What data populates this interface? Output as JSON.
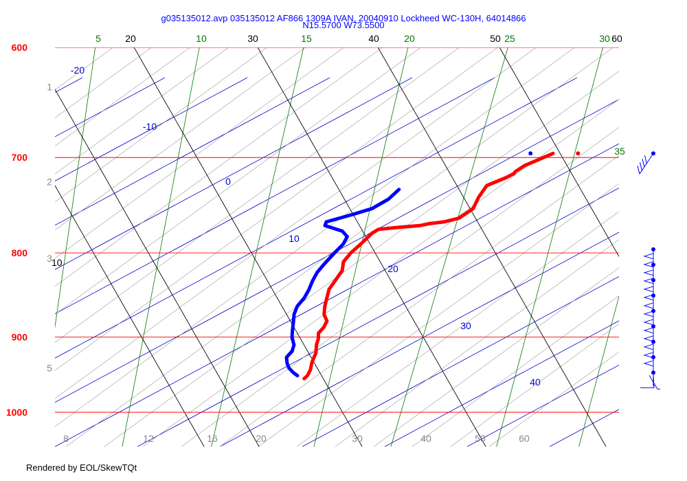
{
  "header": {
    "title_line1": "g035135012.avp 035135012 AF866 1309A IVAN, 20040910 Lockheed WC-130H, 64014866",
    "title_line2": "N15.5700 W73.5500"
  },
  "footer": {
    "credit": "Rendered by EOL/SkewTQt"
  },
  "colors": {
    "isobar": "#ff0000",
    "isotherm": "#000000",
    "mixing_ratio": "#007700",
    "dry_adiabat": "#0000cc",
    "moist_adiabat": "#888888",
    "temperature": "#ff0000",
    "dewpoint": "#0000ff",
    "wind": "#0000ff"
  },
  "chart_data": {
    "type": "skew-t",
    "pressure_levels": [
      {
        "p": 600,
        "label": "600"
      },
      {
        "p": 700,
        "label": "700"
      },
      {
        "p": 800,
        "label": "800"
      },
      {
        "p": 900,
        "label": "900"
      },
      {
        "p": 1000,
        "label": "1000"
      }
    ],
    "isotherm_labels": [
      {
        "t": 20,
        "label": "20"
      },
      {
        "t": 30,
        "label": "30"
      },
      {
        "t": 40,
        "label": "40"
      },
      {
        "t": 50,
        "label": "50"
      },
      {
        "t": 60,
        "label": "60"
      }
    ],
    "side_isotherm_label": {
      "t": 10,
      "label": "10"
    },
    "mixing_ratio_labels": [
      {
        "v": 5,
        "label": "5"
      },
      {
        "v": 10,
        "label": "10"
      },
      {
        "v": 15,
        "label": "15"
      },
      {
        "v": 20,
        "label": "20"
      },
      {
        "v": 25,
        "label": "25"
      },
      {
        "v": 30,
        "label": "30"
      },
      {
        "v": 35,
        "label": "35"
      }
    ],
    "dry_adiabat_labels": [
      {
        "v": -20,
        "label": "-20"
      },
      {
        "v": -10,
        "label": "-10"
      },
      {
        "v": 0,
        "label": "0"
      },
      {
        "v": 10,
        "label": "10"
      },
      {
        "v": 20,
        "label": "20"
      },
      {
        "v": 30,
        "label": "30"
      },
      {
        "v": 40,
        "label": "40"
      }
    ],
    "moist_adiabat_bottom_labels": [
      {
        "v": 8,
        "label": "8"
      },
      {
        "v": 12,
        "label": "12"
      },
      {
        "v": 16,
        "label": "16"
      },
      {
        "v": 20,
        "label": "20"
      },
      {
        "v": 30,
        "label": "30"
      },
      {
        "v": 40,
        "label": "40"
      },
      {
        "v": 50,
        "label": "50"
      },
      {
        "v": 60,
        "label": "60"
      }
    ],
    "altitude_labels": [
      {
        "p": 634,
        "label": "1"
      },
      {
        "p": 724,
        "label": "2"
      },
      {
        "p": 806,
        "label": "3"
      },
      {
        "p": 940,
        "label": "5"
      }
    ],
    "series": [
      {
        "name": "temperature",
        "points": [
          [
            696,
            29.3
          ],
          [
            708,
            27.7
          ],
          [
            714,
            27.3
          ],
          [
            716,
            27.3
          ],
          [
            720,
            26.9
          ],
          [
            728,
            25.8
          ],
          [
            740,
            25.8
          ],
          [
            752,
            26.0
          ],
          [
            762,
            25.4
          ],
          [
            766,
            24.4
          ],
          [
            768,
            23.3
          ],
          [
            770,
            22.7
          ],
          [
            772,
            21.0
          ],
          [
            774,
            19.6
          ],
          [
            778,
            19.3
          ],
          [
            790,
            19.0
          ],
          [
            800,
            18.7
          ],
          [
            810,
            18.6
          ],
          [
            820,
            19.0
          ],
          [
            832,
            19.0
          ],
          [
            842,
            19.0
          ],
          [
            852,
            19.3
          ],
          [
            862,
            19.6
          ],
          [
            872,
            20.0
          ],
          [
            880,
            20.6
          ],
          [
            888,
            20.7
          ],
          [
            895,
            20.6
          ],
          [
            902,
            20.9
          ],
          [
            910,
            21.1
          ],
          [
            920,
            21.5
          ],
          [
            932,
            21.7
          ],
          [
            942,
            22.0
          ],
          [
            950,
            22.1
          ],
          [
            954,
            22.0
          ]
        ]
      },
      {
        "name": "dewpoint",
        "points": [
          [
            732,
            19.0
          ],
          [
            742,
            18.7
          ],
          [
            752,
            17.9
          ],
          [
            758,
            16.7
          ],
          [
            766,
            15.0
          ],
          [
            770,
            15.1
          ],
          [
            776,
            16.8
          ],
          [
            782,
            17.5
          ],
          [
            790,
            17.6
          ],
          [
            800,
            17.4
          ],
          [
            812,
            17.2
          ],
          [
            822,
            17.1
          ],
          [
            832,
            17.2
          ],
          [
            842,
            17.4
          ],
          [
            852,
            17.5
          ],
          [
            862,
            17.4
          ],
          [
            872,
            17.6
          ],
          [
            882,
            18.0
          ],
          [
            890,
            18.3
          ],
          [
            900,
            18.7
          ],
          [
            910,
            19.3
          ],
          [
            918,
            19.5
          ],
          [
            926,
            19.4
          ],
          [
            934,
            19.8
          ],
          [
            940,
            20.2
          ],
          [
            946,
            20.8
          ],
          [
            950,
            21.3
          ]
        ]
      }
    ],
    "isolated_points": [
      {
        "series": "temperature",
        "p": 696,
        "t": 31.3
      },
      {
        "series": "dewpoint",
        "p": 696,
        "t": 27.5
      }
    ],
    "winds": {
      "upper": {
        "p": 696,
        "barbs": 4
      },
      "lower": {
        "p_top": 796,
        "p_bottom": 946,
        "count": 9
      }
    },
    "xlabel": "",
    "ylabel": "",
    "p_range": [
      600,
      1050
    ],
    "grid": true
  }
}
